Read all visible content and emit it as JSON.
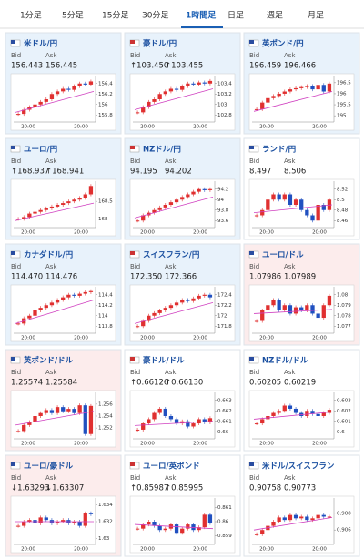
{
  "tabs": [
    "1分足",
    "5分足",
    "15分足",
    "30分足",
    "1時間足",
    "日足",
    "週足",
    "月足"
  ],
  "active_tab": 4,
  "labels": {
    "bid": "Bid",
    "ask": "Ask"
  },
  "cards": [
    {
      "title": "米ドル/円",
      "bg": "#e8f2fb",
      "bid": "156.443",
      "ask": "156.445",
      "trend": "none",
      "chart": {
        "type": "candlestick",
        "ylim": [
          155.7,
          156.5
        ],
        "yticks": [
          156.4,
          156.2,
          156,
          155.8
        ],
        "xlabels": [
          "20:00",
          "20:00"
        ],
        "closes": [
          155.82,
          155.9,
          155.95,
          156.0,
          156.05,
          156.1,
          156.2,
          156.25,
          156.3,
          156.28,
          156.35,
          156.4,
          156.38,
          156.44
        ],
        "ma": [
          155.85,
          156.25
        ]
      }
    },
    {
      "title": "豪ドル/円",
      "bg": "#e8f2fb",
      "bid": "↑103.450",
      "ask": "↑103.455",
      "trend": "up",
      "chart": {
        "type": "candlestick",
        "ylim": [
          102.7,
          103.5
        ],
        "yticks": [
          103.4,
          103.2,
          103,
          102.8
        ],
        "xlabels": [
          "20:00",
          "20:00"
        ],
        "closes": [
          102.85,
          102.95,
          103.05,
          103.1,
          103.2,
          103.25,
          103.3,
          103.28,
          103.35,
          103.4,
          103.38,
          103.42,
          103.4,
          103.45
        ],
        "ma": [
          102.9,
          103.3
        ]
      }
    },
    {
      "title": "英ポンド/円",
      "bg": "#e8f2fb",
      "bid": "196.459",
      "ask": "196.466",
      "trend": "none",
      "chart": {
        "type": "candlestick",
        "ylim": [
          194.8,
          196.7
        ],
        "yticks": [
          196.5,
          196,
          195.5,
          195
        ],
        "xlabels": [
          "20:00",
          "20:00"
        ],
        "closes": [
          195.3,
          195.6,
          195.8,
          195.9,
          196.0,
          196.1,
          196.2,
          196.25,
          196.3,
          196.35,
          196.2,
          196.4,
          196.1,
          196.46
        ],
        "ma": [
          195.2,
          196.1
        ]
      }
    },
    {
      "title": "ユーロ/円",
      "bg": "#e8f2fb",
      "bid": "↑168.937",
      "ask": "↑168.941",
      "trend": "up",
      "chart": {
        "type": "candlestick",
        "ylim": [
          167.8,
          169.0
        ],
        "yticks": [
          168.5,
          168
        ],
        "xlabels": [
          "20:00",
          "20:00"
        ],
        "closes": [
          168.0,
          168.05,
          168.15,
          168.2,
          168.25,
          168.3,
          168.35,
          168.4,
          168.45,
          168.5,
          168.55,
          168.6,
          168.7,
          168.94
        ],
        "ma": [
          167.95,
          168.45
        ]
      }
    },
    {
      "title": "NZドル/円",
      "bg": "#e8f2fb",
      "bid": "94.195",
      "ask": "94.202",
      "trend": "none",
      "chart": {
        "type": "candlestick",
        "ylim": [
          93.5,
          94.3
        ],
        "yticks": [
          94.2,
          94,
          93.8,
          93.6
        ],
        "xlabels": [
          "20:00",
          "20:00"
        ],
        "closes": [
          93.6,
          93.7,
          93.75,
          93.8,
          93.85,
          93.9,
          93.95,
          94.0,
          94.05,
          94.1,
          94.15,
          94.2,
          94.18,
          94.2
        ],
        "ma": [
          93.65,
          94.05
        ]
      }
    },
    {
      "title": "ランド/円",
      "bg": "#ffffff",
      "bid": "8.497",
      "ask": "8.506",
      "trend": "none",
      "chart": {
        "type": "candlestick",
        "ylim": [
          8.45,
          8.53
        ],
        "yticks": [
          8.52,
          8.5,
          8.48,
          8.46
        ],
        "xlabels": [
          "20:00",
          "20:00"
        ],
        "closes": [
          8.47,
          8.48,
          8.5,
          8.51,
          8.5,
          8.51,
          8.49,
          8.5,
          8.48,
          8.47,
          8.46,
          8.49,
          8.48,
          8.5
        ],
        "ma": [
          8.475,
          8.49
        ]
      }
    },
    {
      "title": "カナダドル/円",
      "bg": "#e8f2fb",
      "bid": "114.470",
      "ask": "114.476",
      "trend": "none",
      "chart": {
        "type": "candlestick",
        "ylim": [
          113.7,
          114.5
        ],
        "yticks": [
          114.4,
          114.2,
          114,
          113.8
        ],
        "xlabels": [
          "20:00",
          "20:00"
        ],
        "closes": [
          113.85,
          113.95,
          114.0,
          114.1,
          114.15,
          114.2,
          114.25,
          114.3,
          114.35,
          114.4,
          114.38,
          114.42,
          114.45,
          114.47
        ],
        "ma": [
          113.85,
          114.3
        ]
      }
    },
    {
      "title": "スイスフラン/円",
      "bg": "#e8f2fb",
      "bid": "172.350",
      "ask": "172.366",
      "trend": "none",
      "chart": {
        "type": "candlestick",
        "ylim": [
          171.7,
          172.5
        ],
        "yticks": [
          172.4,
          172.2,
          172,
          171.8
        ],
        "xlabels": [
          "20:00",
          "20:00"
        ],
        "closes": [
          171.8,
          171.9,
          172.0,
          172.05,
          172.1,
          172.15,
          172.2,
          172.25,
          172.3,
          172.28,
          172.33,
          172.38,
          172.4,
          172.35
        ],
        "ma": [
          171.85,
          172.25
        ]
      }
    },
    {
      "title": "ユーロ/ドル",
      "bg": "#fcecec",
      "bid": "1.07986",
      "ask": "1.07989",
      "trend": "none",
      "chart": {
        "type": "candlestick",
        "ylim": [
          1.0765,
          1.0805
        ],
        "yticks": [
          1.08,
          1.079,
          1.078,
          1.077
        ],
        "xlabels": [
          "20:00",
          "20:00"
        ],
        "closes": [
          1.0775,
          1.0785,
          1.079,
          1.0795,
          1.0785,
          1.079,
          1.0782,
          1.0788,
          1.0785,
          1.079,
          1.0782,
          1.0778,
          1.079,
          1.0799
        ],
        "ma": [
          1.0782,
          1.0786
        ]
      }
    },
    {
      "title": "英ポンド/ドル",
      "bg": "#fcecec",
      "bid": "1.25574",
      "ask": "1.25584",
      "trend": "none",
      "chart": {
        "type": "candlestick",
        "ylim": [
          1.2505,
          1.2575
        ],
        "yticks": [
          1.256,
          1.254,
          1.252
        ],
        "xlabels": [
          "20:00",
          "20:00"
        ],
        "closes": [
          1.2515,
          1.2525,
          1.253,
          1.254,
          1.2545,
          1.255,
          1.2545,
          1.2555,
          1.2548,
          1.2552,
          1.2545,
          1.2558,
          1.251,
          1.2557
        ],
        "ma": [
          1.2525,
          1.2548
        ]
      }
    },
    {
      "title": "豪ドル/ドル",
      "bg": "#ffffff",
      "bid": "↑0.66126",
      "ask": "↑0.66130",
      "trend": "up",
      "chart": {
        "type": "candlestick",
        "ylim": [
          0.6595,
          0.6635
        ],
        "yticks": [
          0.663,
          0.662,
          0.661,
          0.66
        ],
        "xlabels": [
          "20:00",
          "20:00"
        ],
        "closes": [
          0.6602,
          0.6608,
          0.6612,
          0.6618,
          0.6622,
          0.6615,
          0.6612,
          0.6608,
          0.661,
          0.6605,
          0.6608,
          0.6612,
          0.6609,
          0.6613
        ],
        "ma": [
          0.6606,
          0.661
        ]
      }
    },
    {
      "title": "NZドル/ドル",
      "bg": "#ffffff",
      "bid": "0.60205",
      "ask": "0.60219",
      "trend": "none",
      "chart": {
        "type": "candlestick",
        "ylim": [
          0.5995,
          0.6035
        ],
        "yticks": [
          0.603,
          0.602,
          0.601,
          0.6
        ],
        "xlabels": [
          "20:00",
          "20:00"
        ],
        "closes": [
          0.6008,
          0.6012,
          0.6015,
          0.6018,
          0.602,
          0.6025,
          0.6022,
          0.6018,
          0.6015,
          0.602,
          0.6017,
          0.6015,
          0.6018,
          0.6021
        ],
        "ma": [
          0.6012,
          0.6019
        ]
      }
    },
    {
      "title": "ユーロ/豪ドル",
      "bg": "#fcecec",
      "bid": "↓1.63293",
      "ask": "↓1.63307",
      "trend": "down",
      "chart": {
        "type": "candlestick",
        "ylim": [
          1.6295,
          1.6345
        ],
        "yticks": [
          1.634,
          1.632,
          1.63
        ],
        "xlabels": [
          "20:00",
          "20:00"
        ],
        "closes": [
          1.6315,
          1.632,
          1.6322,
          1.6318,
          1.6325,
          1.6322,
          1.6318,
          1.632,
          1.6322,
          1.6318,
          1.632,
          1.6315,
          1.633,
          1.6329
        ],
        "ma": [
          1.632,
          1.632
        ]
      }
    },
    {
      "title": "ユーロ/英ポンド",
      "bg": "#ffffff",
      "bid": "↑0.85987",
      "ask": "↑0.85995",
      "trend": "up",
      "chart": {
        "type": "candlestick",
        "ylim": [
          0.8585,
          0.8615
        ],
        "yticks": [
          0.861,
          0.86,
          0.859
        ],
        "xlabels": [
          "20:00",
          "20:00"
        ],
        "closes": [
          0.8595,
          0.8598,
          0.86,
          0.8597,
          0.8594,
          0.8595,
          0.8598,
          0.8592,
          0.8595,
          0.8598,
          0.8594,
          0.8596,
          0.8605,
          0.8599
        ],
        "ma": [
          0.8598,
          0.8595
        ]
      }
    },
    {
      "title": "米ドル/スイスフラン",
      "bg": "#ffffff",
      "bid": "0.90758",
      "ask": "0.90773",
      "trend": "none",
      "chart": {
        "type": "candlestick",
        "ylim": [
          0.9045,
          0.9095
        ],
        "yticks": [
          0.908,
          0.906
        ],
        "xlabels": [
          "20:00",
          "20:00"
        ],
        "closes": [
          0.9055,
          0.906,
          0.9065,
          0.907,
          0.9075,
          0.9072,
          0.9078,
          0.9074,
          0.9076,
          0.9072,
          0.9074,
          0.9078,
          0.9076,
          0.9076
        ],
        "ma": [
          0.906,
          0.9075
        ]
      }
    }
  ]
}
